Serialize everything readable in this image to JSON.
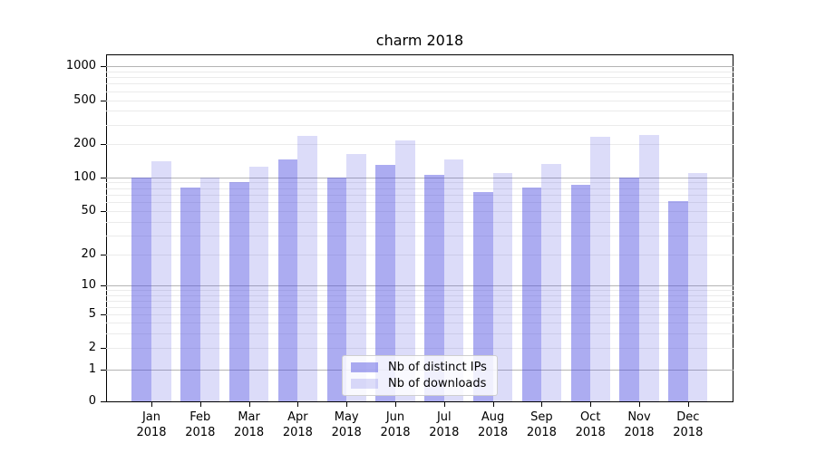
{
  "chart_data": {
    "type": "bar",
    "title": "charm 2018",
    "yscale": "symlog",
    "grid": true,
    "legend_position": "lower center",
    "ylim": [
      0,
      1280
    ],
    "y_ticks": [
      0,
      1,
      2,
      5,
      10,
      20,
      50,
      100,
      200,
      500,
      1000
    ],
    "categories": [
      "Jan 2018",
      "Feb 2018",
      "Mar 2018",
      "Apr 2018",
      "May 2018",
      "Jun 2018",
      "Jul 2018",
      "Aug 2018",
      "Sep 2018",
      "Oct 2018",
      "Nov 2018",
      "Dec 2018"
    ],
    "series": [
      {
        "name": "Nb of distinct IPs",
        "color": "rgba(70,70,225,0.45)",
        "values": [
          100,
          81,
          90,
          144,
          100,
          129,
          106,
          74,
          82,
          86,
          100,
          62
        ]
      },
      {
        "name": "Nb of downloads",
        "color": "rgba(70,70,225,0.19)",
        "values": [
          140,
          100,
          126,
          237,
          163,
          214,
          144,
          110,
          131,
          232,
          240,
          109
        ]
      }
    ]
  }
}
